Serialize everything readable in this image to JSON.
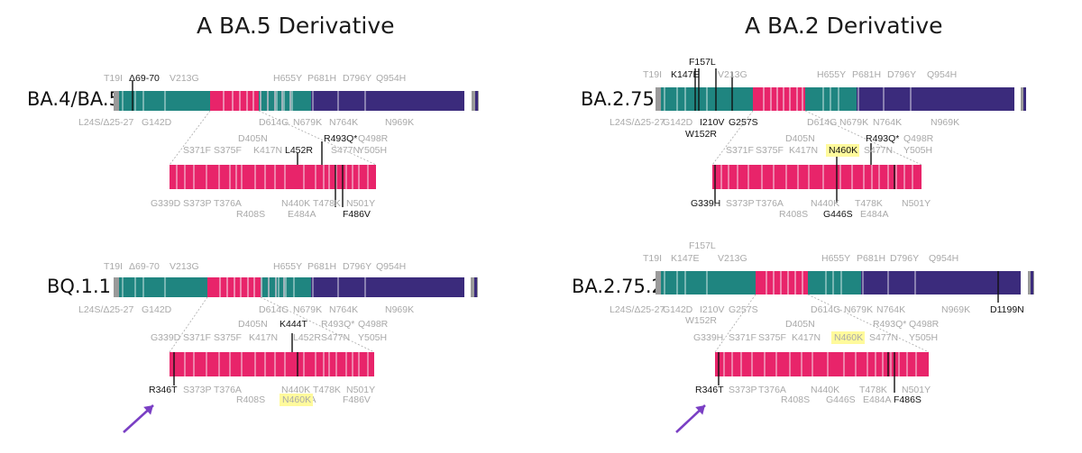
{
  "left": {
    "title": "A BA.5 Derivative",
    "top": {
      "name": "BA.4/BA.5",
      "labels": [
        {
          "text": "T19I",
          "color": "gray"
        },
        {
          "text": "Δ69-70",
          "color": "black"
        },
        {
          "text": "V213G",
          "color": "gray"
        },
        {
          "text": "H655Y",
          "color": "gray"
        },
        {
          "text": "P681H",
          "color": "gray"
        },
        {
          "text": "D796Y",
          "color": "gray"
        },
        {
          "text": "Q954H",
          "color": "gray"
        },
        {
          "text": "L24S/Δ25-27",
          "color": "gray"
        },
        {
          "text": "G142D",
          "color": "gray"
        },
        {
          "text": "D614G",
          "color": "gray"
        },
        {
          "text": "N679K",
          "color": "gray"
        },
        {
          "text": "N764K",
          "color": "gray"
        },
        {
          "text": "N969K",
          "color": "gray"
        }
      ],
      "rbd_labels": [
        {
          "text": "S371F",
          "color": "gray"
        },
        {
          "text": "S375F",
          "color": "gray"
        },
        {
          "text": "D405N",
          "color": "gray"
        },
        {
          "text": "K417N",
          "color": "gray"
        },
        {
          "text": "L452R",
          "color": "black"
        },
        {
          "text": "R493Q*",
          "color": "black"
        },
        {
          "text": "Q498R",
          "color": "gray"
        },
        {
          "text": "S477N",
          "color": "gray"
        },
        {
          "text": "Y505H",
          "color": "gray"
        },
        {
          "text": "G339D",
          "color": "gray"
        },
        {
          "text": "S373P",
          "color": "gray"
        },
        {
          "text": "T376A",
          "color": "gray"
        },
        {
          "text": "R408S",
          "color": "gray"
        },
        {
          "text": "N440K",
          "color": "gray"
        },
        {
          "text": "T478K",
          "color": "gray"
        },
        {
          "text": "E484A",
          "color": "gray"
        },
        {
          "text": "N501Y",
          "color": "gray"
        },
        {
          "text": "F486V",
          "color": "black"
        }
      ]
    },
    "bottom": {
      "name": "BQ.1.1",
      "labels": [
        {
          "text": "T19I",
          "color": "gray"
        },
        {
          "text": "Δ69-70",
          "color": "gray"
        },
        {
          "text": "V213G",
          "color": "gray"
        },
        {
          "text": "H655Y",
          "color": "gray"
        },
        {
          "text": "P681H",
          "color": "gray"
        },
        {
          "text": "D796Y",
          "color": "gray"
        },
        {
          "text": "Q954H",
          "color": "gray"
        },
        {
          "text": "L24S/Δ25-27",
          "color": "gray"
        },
        {
          "text": "G142D",
          "color": "gray"
        },
        {
          "text": "D614G",
          "color": "gray"
        },
        {
          "text": "N679K",
          "color": "gray"
        },
        {
          "text": "N764K",
          "color": "gray"
        },
        {
          "text": "N969K",
          "color": "gray"
        }
      ],
      "rbd_labels": [
        {
          "text": "D405N",
          "color": "gray"
        },
        {
          "text": "K444T",
          "color": "black"
        },
        {
          "text": "G339D",
          "color": "gray"
        },
        {
          "text": "S371F",
          "color": "gray"
        },
        {
          "text": "S375F",
          "color": "gray"
        },
        {
          "text": "K417N",
          "color": "gray"
        },
        {
          "text": "L452R",
          "color": "gray"
        },
        {
          "text": "R493Q*",
          "color": "gray"
        },
        {
          "text": "Q498R",
          "color": "gray"
        },
        {
          "text": "S477N",
          "color": "gray"
        },
        {
          "text": "Y505H",
          "color": "gray"
        },
        {
          "text": "R346T",
          "color": "black"
        },
        {
          "text": "S373P",
          "color": "gray"
        },
        {
          "text": "T376A",
          "color": "gray"
        },
        {
          "text": "R408S",
          "color": "gray"
        },
        {
          "text": "N440K",
          "color": "gray"
        },
        {
          "text": "T478K",
          "color": "gray"
        },
        {
          "text": "E484A",
          "color": "gray"
        },
        {
          "text": "N501Y",
          "color": "gray"
        },
        {
          "text": "N460K",
          "color": "gray",
          "highlight": true
        },
        {
          "text": "F486V",
          "color": "gray"
        }
      ]
    }
  },
  "right": {
    "title": "A BA.2 Derivative",
    "top": {
      "name": "BA.2.75",
      "labels": [
        {
          "text": "F157L",
          "color": "black"
        },
        {
          "text": "K147E",
          "color": "black"
        },
        {
          "text": "T19I",
          "color": "gray"
        },
        {
          "text": "V213G",
          "color": "gray"
        },
        {
          "text": "H655Y",
          "color": "gray"
        },
        {
          "text": "P681H",
          "color": "gray"
        },
        {
          "text": "D796Y",
          "color": "gray"
        },
        {
          "text": "Q954H",
          "color": "gray"
        },
        {
          "text": "L24S/Δ25-27",
          "color": "gray"
        },
        {
          "text": "G142D",
          "color": "gray"
        },
        {
          "text": "I210V",
          "color": "black"
        },
        {
          "text": "G257S",
          "color": "black"
        },
        {
          "text": "W152R",
          "color": "black"
        },
        {
          "text": "D614G",
          "color": "gray"
        },
        {
          "text": "N679K",
          "color": "gray"
        },
        {
          "text": "N764K",
          "color": "gray"
        },
        {
          "text": "N969K",
          "color": "gray"
        }
      ],
      "rbd_labels": [
        {
          "text": "R493Q*",
          "color": "black"
        },
        {
          "text": "Q498R",
          "color": "gray"
        },
        {
          "text": "D405N",
          "color": "gray"
        },
        {
          "text": "S371F",
          "color": "gray"
        },
        {
          "text": "S375F",
          "color": "gray"
        },
        {
          "text": "K417N",
          "color": "gray"
        },
        {
          "text": "N460K",
          "color": "black",
          "highlight": true
        },
        {
          "text": "S477N",
          "color": "gray"
        },
        {
          "text": "Y505H",
          "color": "gray"
        },
        {
          "text": "G339H",
          "color": "black"
        },
        {
          "text": "S373P",
          "color": "gray"
        },
        {
          "text": "T376A",
          "color": "gray"
        },
        {
          "text": "N440K",
          "color": "gray"
        },
        {
          "text": "T478K",
          "color": "gray"
        },
        {
          "text": "N501Y",
          "color": "gray"
        },
        {
          "text": "R408S",
          "color": "gray"
        },
        {
          "text": "G446S",
          "color": "black"
        },
        {
          "text": "E484A",
          "color": "gray"
        }
      ]
    },
    "bottom": {
      "name": "BA.2.75.2",
      "labels": [
        {
          "text": "F157L",
          "color": "gray"
        },
        {
          "text": "K147E",
          "color": "gray"
        },
        {
          "text": "T19I",
          "color": "gray"
        },
        {
          "text": "V213G",
          "color": "gray"
        },
        {
          "text": "H655Y",
          "color": "gray"
        },
        {
          "text": "P681H",
          "color": "gray"
        },
        {
          "text": "D796Y",
          "color": "gray"
        },
        {
          "text": "Q954H",
          "color": "gray"
        },
        {
          "text": "L24S/Δ25-27",
          "color": "gray"
        },
        {
          "text": "G142D",
          "color": "gray"
        },
        {
          "text": "I210V",
          "color": "gray"
        },
        {
          "text": "G257S",
          "color": "gray"
        },
        {
          "text": "W152R",
          "color": "gray"
        },
        {
          "text": "D614G",
          "color": "gray"
        },
        {
          "text": "N679K",
          "color": "gray"
        },
        {
          "text": "N764K",
          "color": "gray"
        },
        {
          "text": "N969K",
          "color": "gray"
        },
        {
          "text": "D1199N",
          "color": "black"
        }
      ],
      "rbd_labels": [
        {
          "text": "D405N",
          "color": "gray"
        },
        {
          "text": "R493Q*",
          "color": "gray"
        },
        {
          "text": "Q498R",
          "color": "gray"
        },
        {
          "text": "G339H",
          "color": "gray"
        },
        {
          "text": "S371F",
          "color": "gray"
        },
        {
          "text": "S375F",
          "color": "gray"
        },
        {
          "text": "K417N",
          "color": "gray"
        },
        {
          "text": "N460K",
          "color": "gray",
          "highlight": true
        },
        {
          "text": "S477N",
          "color": "gray"
        },
        {
          "text": "Y505H",
          "color": "gray"
        },
        {
          "text": "R346T",
          "color": "black"
        },
        {
          "text": "S373P",
          "color": "gray"
        },
        {
          "text": "T376A",
          "color": "gray"
        },
        {
          "text": "N440K",
          "color": "gray"
        },
        {
          "text": "T478K",
          "color": "gray"
        },
        {
          "text": "N501Y",
          "color": "gray"
        },
        {
          "text": "R408S",
          "color": "gray"
        },
        {
          "text": "G446S",
          "color": "gray"
        },
        {
          "text": "E484A",
          "color": "gray"
        },
        {
          "text": "F486S",
          "color": "black"
        }
      ]
    }
  },
  "colors": {
    "ntd": "#1f8580",
    "rbd": "#e8246a",
    "s2": "#3b2b7c",
    "end": "#9a9a9a",
    "arrow": "#7a3fc4",
    "highlight": "#fffa9c",
    "mutation_line": "#111111",
    "faint_mark": "#f2cfe0"
  }
}
